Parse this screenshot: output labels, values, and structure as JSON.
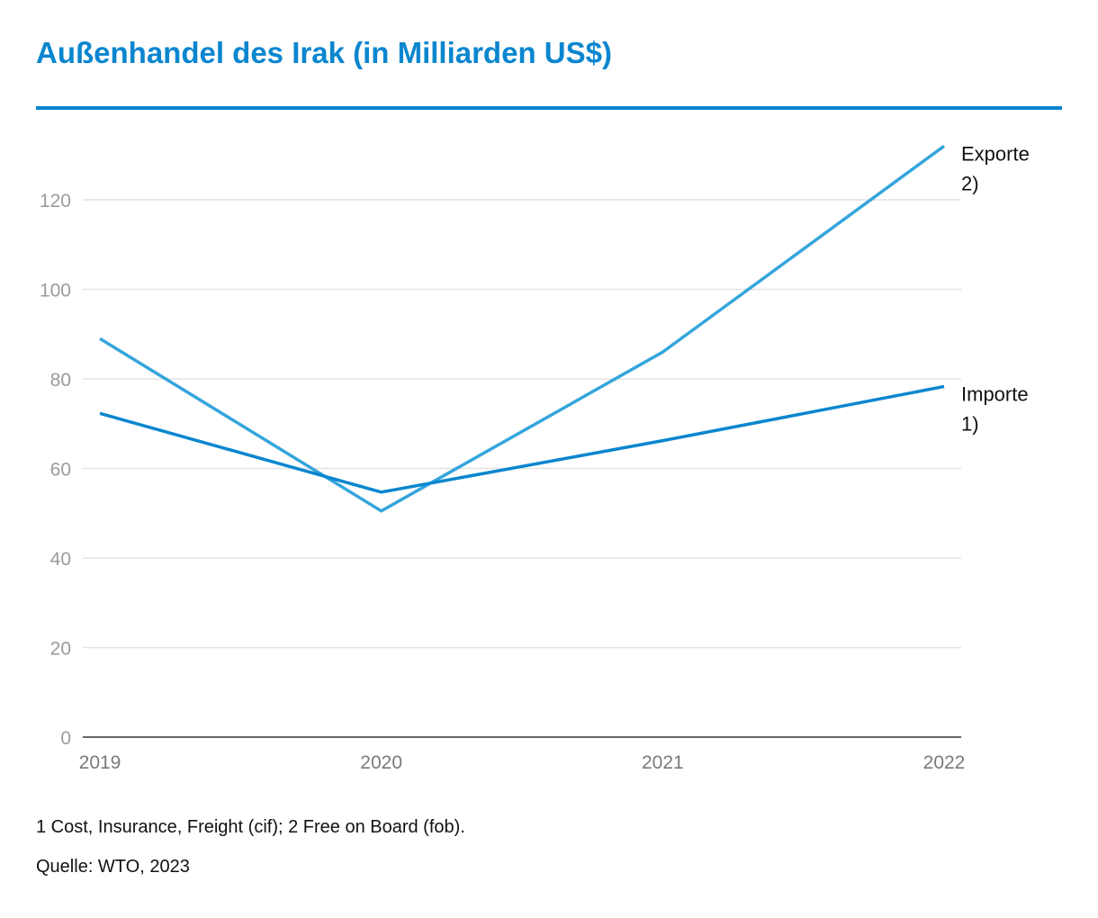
{
  "title": "Außenhandel des Irak (in Milliarden US$)",
  "footnote": "1 Cost, Insurance, Freight (cif); 2 Free on Board (fob).",
  "source": "Quelle: WTO, 2023",
  "colors": {
    "title": "#0a86cf",
    "rule": "#0a86cf",
    "exporte": "#35a5dc",
    "importe": "#0a86cf",
    "grid": "#e3e3e3",
    "axis": "#333333",
    "tick_text": "#9b9b9b"
  },
  "chart_data": {
    "type": "line",
    "x": [
      "2019",
      "2020",
      "2021",
      "2022"
    ],
    "ylim": [
      0,
      130
    ],
    "yticks": [
      0,
      20,
      40,
      60,
      80,
      100,
      120
    ],
    "grid": true,
    "legend": "inline-right",
    "series": [
      {
        "name": "Exporte 2)",
        "label_lines": [
          "Exporte",
          "2)"
        ],
        "values": [
          89,
          50.5,
          86,
          132
        ]
      },
      {
        "name": "Importe 1)",
        "label_lines": [
          "Importe",
          "1)"
        ],
        "values": [
          72.3,
          54.7,
          66.2,
          78.3
        ]
      }
    ]
  }
}
